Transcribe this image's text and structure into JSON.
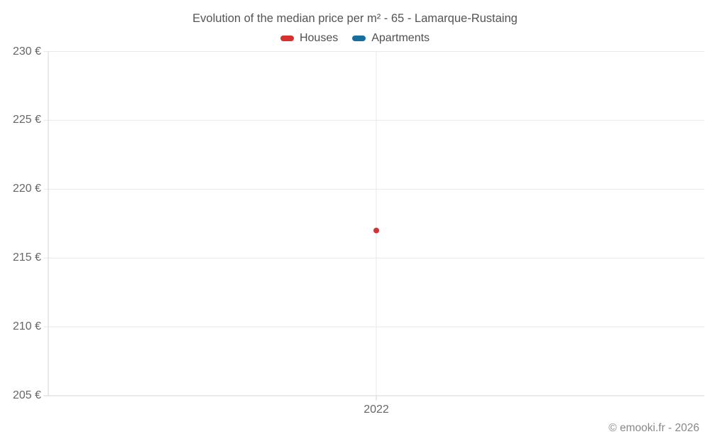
{
  "page": {
    "title": "Evolution of the median price per m² - 65 - Lamarque-Rustaing",
    "footer": "© emooki.fr - 2026"
  },
  "legend": {
    "items": [
      {
        "label": "Houses",
        "color": "#d7312e"
      },
      {
        "label": "Apartments",
        "color": "#176f9e"
      }
    ]
  },
  "chart_data": {
    "type": "scatter",
    "title": "Evolution of the median price per m² - 65 - Lamarque-Rustaing",
    "categories": [
      "2022"
    ],
    "series": [
      {
        "name": "Houses",
        "color": "#d7312e",
        "values": [
          217
        ]
      },
      {
        "name": "Apartments",
        "color": "#176f9e",
        "values": [
          null
        ]
      }
    ],
    "ylim": [
      205,
      230
    ],
    "yticks": [
      205,
      210,
      215,
      220,
      225,
      230
    ],
    "ytick_suffix": " €",
    "xlabel": "",
    "ylabel": "",
    "grid": true,
    "legend_position": "top",
    "colors": {
      "grid_line": "#e9e9e9",
      "axis_line": "#d4d4d4",
      "tick_text": "#666666"
    }
  }
}
